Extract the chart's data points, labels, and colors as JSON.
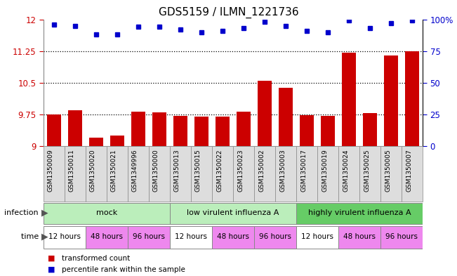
{
  "title": "GDS5159 / ILMN_1221736",
  "samples": [
    "GSM1350009",
    "GSM1350011",
    "GSM1350020",
    "GSM1350021",
    "GSM1349996",
    "GSM1350000",
    "GSM1350013",
    "GSM1350015",
    "GSM1350022",
    "GSM1350023",
    "GSM1350002",
    "GSM1350003",
    "GSM1350017",
    "GSM1350019",
    "GSM1350024",
    "GSM1350025",
    "GSM1350005",
    "GSM1350007"
  ],
  "bar_values": [
    9.75,
    9.85,
    9.2,
    9.25,
    9.82,
    9.8,
    9.72,
    9.7,
    9.7,
    9.82,
    10.55,
    10.38,
    9.73,
    9.72,
    11.22,
    9.78,
    11.15,
    11.25
  ],
  "dot_values": [
    96,
    95,
    88,
    88,
    94,
    94,
    92,
    90,
    91,
    93,
    98,
    95,
    91,
    90,
    99,
    93,
    97,
    99
  ],
  "ylim_left": [
    9,
    12
  ],
  "ylim_right": [
    0,
    100
  ],
  "yticks_left": [
    9,
    9.75,
    10.5,
    11.25,
    12
  ],
  "yticks_right": [
    0,
    25,
    50,
    75,
    100
  ],
  "ytick_labels_left": [
    "9",
    "9.75",
    "10.5",
    "11.25",
    "12"
  ],
  "ytick_labels_right": [
    "0",
    "25",
    "50",
    "75",
    "100%"
  ],
  "hlines": [
    9.75,
    10.5,
    11.25
  ],
  "bar_color": "#cc0000",
  "dot_color": "#0000cc",
  "infection_group_data": [
    {
      "label": "mock",
      "start": 0,
      "end": 6,
      "color": "#bbeebb"
    },
    {
      "label": "low virulent influenza A",
      "start": 6,
      "end": 12,
      "color": "#bbeebb"
    },
    {
      "label": "highly virulent influenza A",
      "start": 12,
      "end": 18,
      "color": "#66cc66"
    }
  ],
  "time_group_data": [
    {
      "label": "12 hours",
      "start": 0,
      "end": 2,
      "color": "#ffffff"
    },
    {
      "label": "48 hours",
      "start": 2,
      "end": 4,
      "color": "#ee88ee"
    },
    {
      "label": "96 hours",
      "start": 4,
      "end": 6,
      "color": "#ee88ee"
    },
    {
      "label": "12 hours",
      "start": 6,
      "end": 8,
      "color": "#ffffff"
    },
    {
      "label": "48 hours",
      "start": 8,
      "end": 10,
      "color": "#ee88ee"
    },
    {
      "label": "96 hours",
      "start": 10,
      "end": 12,
      "color": "#ee88ee"
    },
    {
      "label": "12 hours",
      "start": 12,
      "end": 14,
      "color": "#ffffff"
    },
    {
      "label": "48 hours",
      "start": 14,
      "end": 16,
      "color": "#ee88ee"
    },
    {
      "label": "96 hours",
      "start": 16,
      "end": 18,
      "color": "#ee88ee"
    }
  ],
  "legend_bar_label": "transformed count",
  "legend_dot_label": "percentile rank within the sample",
  "infection_label": "infection",
  "time_label": "time",
  "sample_label_fontsize": 6.5,
  "tick_label_fontsize": 8.5,
  "title_fontsize": 11
}
